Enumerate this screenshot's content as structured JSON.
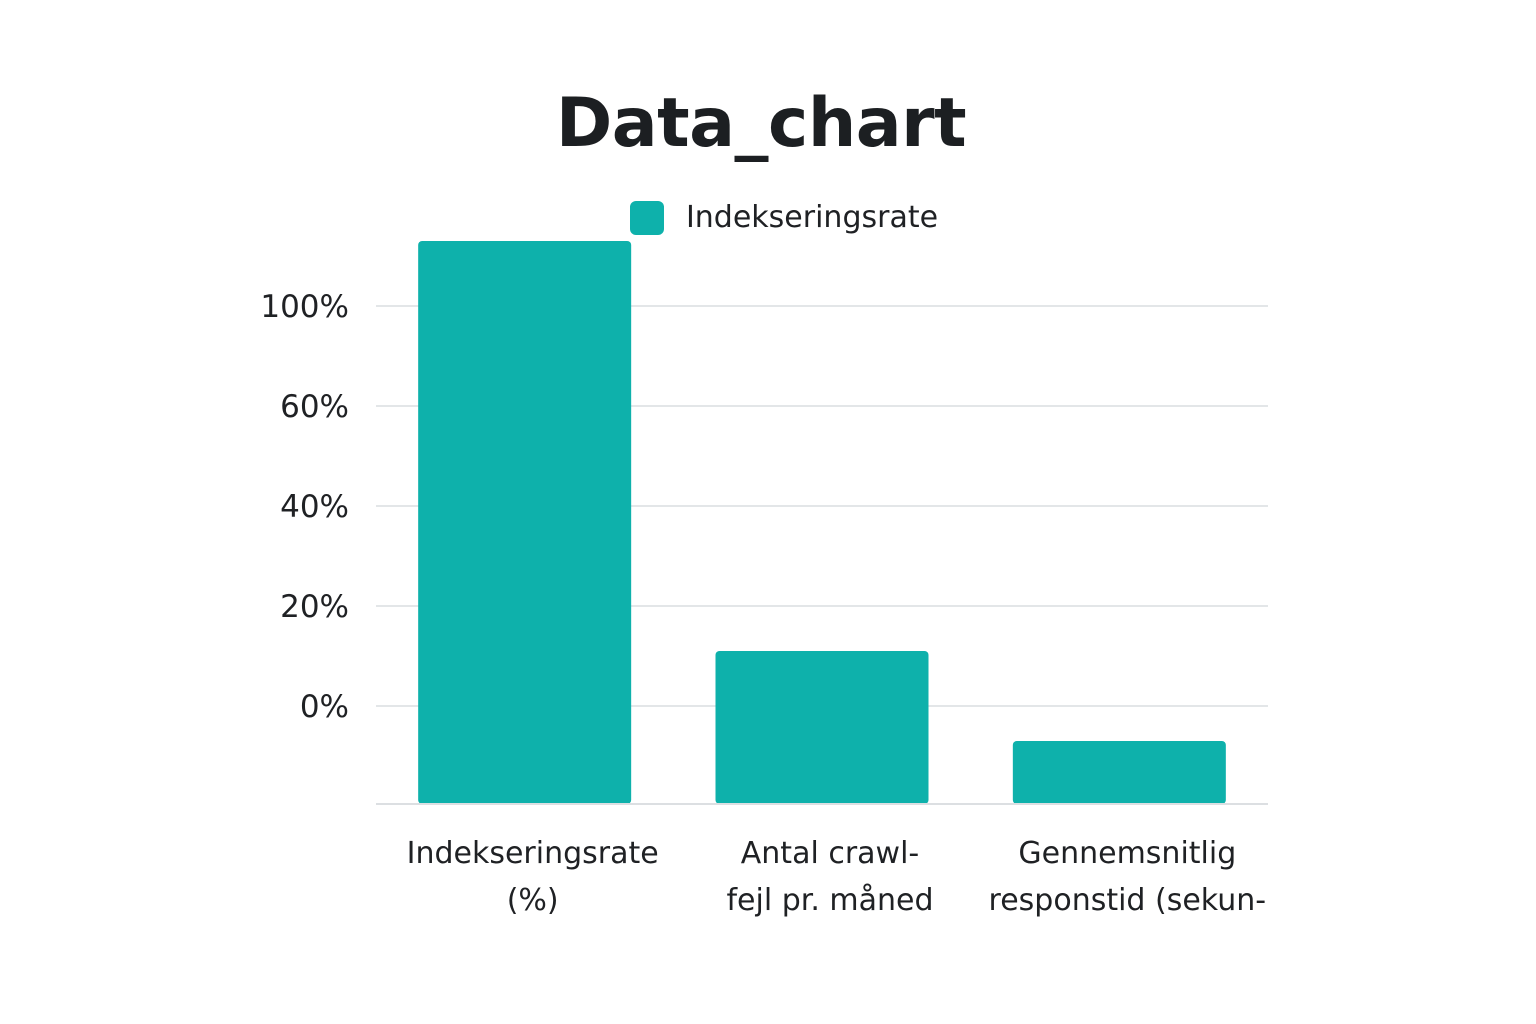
{
  "chart_data": {
    "type": "bar",
    "title": "Data_chart",
    "xlabel": "",
    "ylabel": "",
    "legend": {
      "position": "top-center",
      "show": true
    },
    "grid": true,
    "categories": [
      "Indekseringsrate (%)",
      "Antal crawl-fejl pr. måned",
      "Gennemsnitlig responstid (sekun-"
    ],
    "category_lines": [
      [
        "Indekseringsrate",
        "(%)"
      ],
      [
        "Antal crawl-",
        "fejl pr. måned"
      ],
      [
        "Gennemsnitlig",
        "responstid (sekun-"
      ]
    ],
    "series": [
      {
        "name": "Indekseringsrate",
        "color": "#0eb1ab",
        "values": [
          93,
          11,
          -7
        ]
      }
    ],
    "yticks": [
      {
        "value": 100,
        "label": "100%"
      },
      {
        "value": 60,
        "label": "60%"
      },
      {
        "value": 40,
        "label": "40%"
      },
      {
        "value": 20,
        "label": "20%"
      },
      {
        "value": 0,
        "label": "0%"
      }
    ]
  }
}
